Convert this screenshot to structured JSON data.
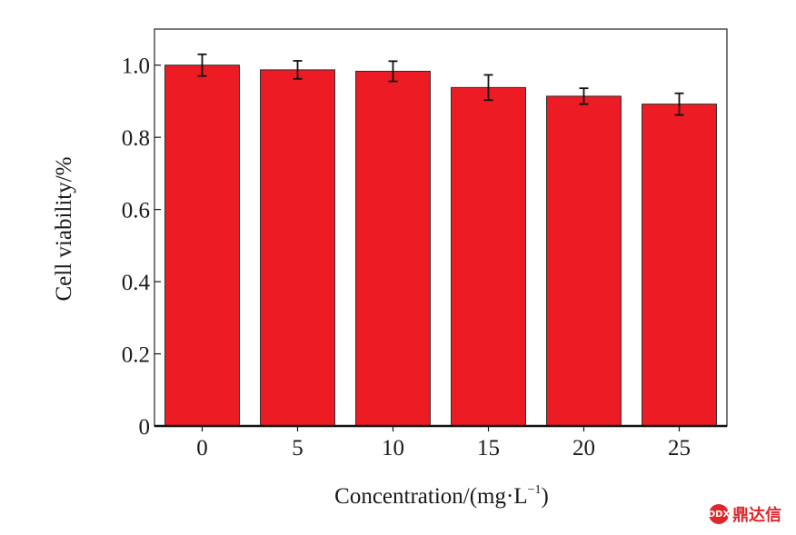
{
  "chart_data": {
    "type": "bar",
    "categories": [
      "0",
      "5",
      "10",
      "15",
      "20",
      "25"
    ],
    "values": [
      1.0,
      0.987,
      0.983,
      0.938,
      0.914,
      0.892
    ],
    "errors": [
      0.03,
      0.025,
      0.028,
      0.035,
      0.022,
      0.03
    ],
    "xlabel": "Concentration/(mg·L",
    "xlabel_sup": "−1",
    "xlabel_tail": ")",
    "ylabel": "Cell  viability/%",
    "ylim": [
      0,
      1.1
    ],
    "yticks": [
      {
        "value": 0,
        "label": "0"
      },
      {
        "value": 0.2,
        "label": "0.2"
      },
      {
        "value": 0.4,
        "label": "0.4"
      },
      {
        "value": 0.6,
        "label": "0.6"
      },
      {
        "value": 0.8,
        "label": "0.8"
      },
      {
        "value": 1.0,
        "label": "1.0"
      }
    ],
    "bar_color": "#ed1c24",
    "grid": false,
    "legend": "none"
  },
  "watermark": {
    "mark": "DDX",
    "text": "鼎达信",
    "color": "#e0262b"
  }
}
